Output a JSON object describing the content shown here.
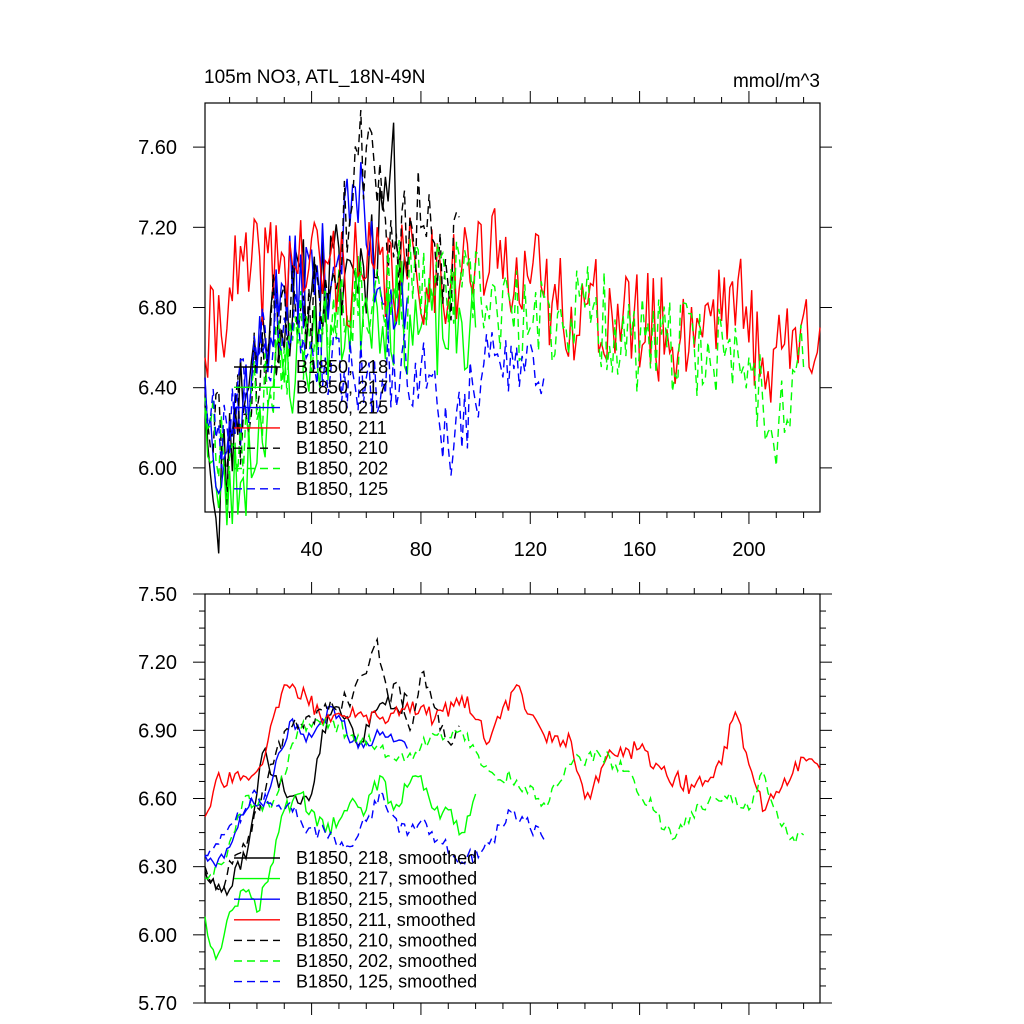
{
  "chart_data": [
    {
      "type": "line",
      "title": "105m NO3, ATL_18N-49N",
      "units": "mmol/m^3",
      "xlim": [
        1,
        226
      ],
      "ylim": [
        5.78,
        7.82
      ],
      "yticks": [
        "6.00",
        "6.40",
        "6.80",
        "7.20",
        "7.60"
      ],
      "xticks": [
        "40",
        "80",
        "120",
        "160",
        "200"
      ],
      "legend_position": "lower-left",
      "series": [
        {
          "name": "B1850, 218",
          "color": "#000000",
          "dash": "solid",
          "n": 75,
          "base": 6.62,
          "amp": 0.3,
          "seed": 11,
          "anchors": [
            [
              1,
              6.45
            ],
            [
              5,
              5.75
            ],
            [
              12,
              6.3
            ],
            [
              25,
              6.78
            ],
            [
              40,
              6.88
            ],
            [
              55,
              7.0
            ],
            [
              61,
              7.05
            ],
            [
              69,
              7.52
            ],
            [
              75,
              6.95
            ]
          ]
        },
        {
          "name": "B1850, 217",
          "color": "#00ff00",
          "dash": "solid",
          "n": 100,
          "base": 6.55,
          "amp": 0.28,
          "seed": 23,
          "anchors": [
            [
              1,
              6.3
            ],
            [
              6,
              5.8
            ],
            [
              15,
              5.95
            ],
            [
              25,
              6.4
            ],
            [
              40,
              6.6
            ],
            [
              60,
              6.85
            ],
            [
              80,
              6.7
            ],
            [
              100,
              6.7
            ]
          ]
        },
        {
          "name": "B1850, 215",
          "color": "#0000ff",
          "dash": "solid",
          "n": 75,
          "base": 6.65,
          "amp": 0.25,
          "seed": 37,
          "anchors": [
            [
              1,
              6.45
            ],
            [
              4,
              6.05
            ],
            [
              15,
              6.35
            ],
            [
              30,
              6.9
            ],
            [
              48,
              7.0
            ],
            [
              56,
              7.4
            ],
            [
              65,
              6.9
            ],
            [
              75,
              6.85
            ]
          ]
        },
        {
          "name": "B1850, 211",
          "color": "#ff0000",
          "dash": "solid",
          "n": 226,
          "base": 6.78,
          "amp": 0.28,
          "seed": 41,
          "anchors": [
            [
              1,
              6.55
            ],
            [
              10,
              6.9
            ],
            [
              30,
              7.05
            ],
            [
              60,
              6.95
            ],
            [
              95,
              7.0
            ],
            [
              115,
              7.05
            ],
            [
              125,
              6.85
            ],
            [
              150,
              6.75
            ],
            [
              175,
              6.65
            ],
            [
              193,
              6.9
            ],
            [
              205,
              6.55
            ],
            [
              226,
              6.7
            ]
          ]
        },
        {
          "name": "B1850, 210",
          "color": "#000000",
          "dash": "dashed",
          "n": 94,
          "base": 6.8,
          "amp": 0.3,
          "seed": 53,
          "anchors": [
            [
              1,
              6.4
            ],
            [
              10,
              6.15
            ],
            [
              25,
              6.7
            ],
            [
              45,
              6.95
            ],
            [
              61,
              7.7
            ],
            [
              70,
              7.05
            ],
            [
              80,
              7.2
            ],
            [
              90,
              6.9
            ],
            [
              94,
              7.25
            ]
          ]
        },
        {
          "name": "B1850, 202",
          "color": "#00ff00",
          "dash": "dashed",
          "n": 220,
          "base": 6.62,
          "amp": 0.25,
          "seed": 67,
          "anchors": [
            [
              1,
              6.35
            ],
            [
              10,
              6.05
            ],
            [
              30,
              6.6
            ],
            [
              50,
              6.85
            ],
            [
              70,
              6.9
            ],
            [
              95,
              6.9
            ],
            [
              120,
              6.7
            ],
            [
              140,
              6.8
            ],
            [
              160,
              6.6
            ],
            [
              180,
              6.6
            ],
            [
              200,
              6.55
            ],
            [
              208,
              6.2
            ],
            [
              220,
              6.5
            ]
          ]
        },
        {
          "name": "B1850, 125",
          "color": "#0000ff",
          "dash": "dashed",
          "n": 125,
          "base": 6.5,
          "amp": 0.22,
          "seed": 79,
          "anchors": [
            [
              1,
              6.4
            ],
            [
              5,
              6.15
            ],
            [
              20,
              6.55
            ],
            [
              30,
              6.75
            ],
            [
              45,
              6.55
            ],
            [
              60,
              6.45
            ],
            [
              80,
              6.5
            ],
            [
              92,
              6.1
            ],
            [
              105,
              6.55
            ],
            [
              115,
              6.6
            ],
            [
              125,
              6.45
            ]
          ]
        }
      ]
    },
    {
      "type": "line",
      "xlim": [
        1,
        226
      ],
      "ylim": [
        5.7,
        7.5
      ],
      "yticks": [
        "5.70",
        "6.00",
        "6.30",
        "6.60",
        "6.90",
        "7.20",
        "7.50"
      ],
      "legend_position": "lower-left",
      "series": [
        {
          "name": "B1850, 218, smoothed",
          "color": "#000000",
          "dash": "solid",
          "n": 75,
          "seed": 111,
          "amp": 0.04,
          "anchors": [
            [
              1,
              6.28
            ],
            [
              5,
              6.2
            ],
            [
              10,
              6.2
            ],
            [
              17,
              6.4
            ],
            [
              22,
              6.8
            ],
            [
              27,
              6.7
            ],
            [
              35,
              6.58
            ],
            [
              40,
              6.62
            ],
            [
              44,
              6.9
            ],
            [
              48,
              7.0
            ],
            [
              52,
              6.95
            ],
            [
              58,
              6.85
            ],
            [
              63,
              6.98
            ],
            [
              68,
              7.05
            ],
            [
              72,
              6.98
            ],
            [
              75,
              7.05
            ]
          ]
        },
        {
          "name": "B1850, 217, smoothed",
          "color": "#00ff00",
          "dash": "solid",
          "n": 100,
          "seed": 123,
          "amp": 0.04,
          "anchors": [
            [
              1,
              6.08
            ],
            [
              3,
              5.95
            ],
            [
              6,
              5.92
            ],
            [
              10,
              6.1
            ],
            [
              15,
              6.2
            ],
            [
              20,
              6.1
            ],
            [
              25,
              6.3
            ],
            [
              30,
              6.55
            ],
            [
              35,
              6.62
            ],
            [
              40,
              6.55
            ],
            [
              45,
              6.45
            ],
            [
              50,
              6.5
            ],
            [
              55,
              6.6
            ],
            [
              60,
              6.55
            ],
            [
              65,
              6.7
            ],
            [
              70,
              6.55
            ],
            [
              75,
              6.65
            ],
            [
              80,
              6.7
            ],
            [
              85,
              6.55
            ],
            [
              90,
              6.55
            ],
            [
              95,
              6.45
            ],
            [
              100,
              6.62
            ]
          ]
        },
        {
          "name": "B1850, 215, smoothed",
          "color": "#0000ff",
          "dash": "solid",
          "n": 75,
          "seed": 137,
          "amp": 0.03,
          "anchors": [
            [
              1,
              6.35
            ],
            [
              5,
              6.3
            ],
            [
              12,
              6.45
            ],
            [
              18,
              6.6
            ],
            [
              22,
              6.55
            ],
            [
              28,
              6.8
            ],
            [
              33,
              6.95
            ],
            [
              38,
              6.85
            ],
            [
              44,
              6.95
            ],
            [
              48,
              7.0
            ],
            [
              55,
              6.85
            ],
            [
              60,
              6.85
            ],
            [
              65,
              6.88
            ],
            [
              70,
              6.85
            ],
            [
              75,
              6.82
            ]
          ]
        },
        {
          "name": "B1850, 211, smoothed",
          "color": "#ff0000",
          "dash": "solid",
          "n": 226,
          "seed": 141,
          "amp": 0.04,
          "anchors": [
            [
              1,
              6.52
            ],
            [
              5,
              6.68
            ],
            [
              15,
              6.7
            ],
            [
              22,
              6.75
            ],
            [
              30,
              7.1
            ],
            [
              38,
              7.05
            ],
            [
              45,
              6.95
            ],
            [
              55,
              7.0
            ],
            [
              65,
              6.95
            ],
            [
              75,
              7.02
            ],
            [
              85,
              6.95
            ],
            [
              95,
              7.05
            ],
            [
              105,
              6.85
            ],
            [
              115,
              7.1
            ],
            [
              125,
              6.88
            ],
            [
              135,
              6.85
            ],
            [
              140,
              6.6
            ],
            [
              150,
              6.8
            ],
            [
              160,
              6.82
            ],
            [
              170,
              6.7
            ],
            [
              180,
              6.65
            ],
            [
              190,
              6.75
            ],
            [
              195,
              6.98
            ],
            [
              200,
              6.75
            ],
            [
              206,
              6.55
            ],
            [
              212,
              6.65
            ],
            [
              220,
              6.78
            ],
            [
              226,
              6.73
            ]
          ]
        },
        {
          "name": "B1850, 210, smoothed",
          "color": "#000000",
          "dash": "dashed",
          "n": 94,
          "seed": 153,
          "amp": 0.04,
          "anchors": [
            [
              1,
              6.3
            ],
            [
              6,
              6.2
            ],
            [
              12,
              6.35
            ],
            [
              18,
              6.45
            ],
            [
              25,
              6.75
            ],
            [
              32,
              6.9
            ],
            [
              40,
              6.95
            ],
            [
              48,
              7.0
            ],
            [
              55,
              7.05
            ],
            [
              60,
              7.15
            ],
            [
              64,
              7.3
            ],
            [
              68,
              7.05
            ],
            [
              72,
              7.1
            ],
            [
              76,
              6.9
            ],
            [
              80,
              7.15
            ],
            [
              85,
              7.0
            ],
            [
              90,
              6.85
            ],
            [
              94,
              6.92
            ]
          ]
        },
        {
          "name": "B1850, 202, smoothed",
          "color": "#00ff00",
          "dash": "dashed",
          "n": 220,
          "seed": 167,
          "amp": 0.035,
          "anchors": [
            [
              1,
              6.25
            ],
            [
              8,
              6.32
            ],
            [
              15,
              6.6
            ],
            [
              25,
              6.55
            ],
            [
              35,
              6.9
            ],
            [
              45,
              6.95
            ],
            [
              55,
              6.88
            ],
            [
              65,
              6.82
            ],
            [
              75,
              6.78
            ],
            [
              85,
              6.88
            ],
            [
              95,
              6.9
            ],
            [
              105,
              6.72
            ],
            [
              115,
              6.68
            ],
            [
              125,
              6.58
            ],
            [
              135,
              6.75
            ],
            [
              145,
              6.8
            ],
            [
              155,
              6.72
            ],
            [
              165,
              6.55
            ],
            [
              172,
              6.42
            ],
            [
              182,
              6.58
            ],
            [
              192,
              6.6
            ],
            [
              200,
              6.55
            ],
            [
              205,
              6.72
            ],
            [
              210,
              6.55
            ],
            [
              215,
              6.42
            ],
            [
              220,
              6.44
            ]
          ]
        },
        {
          "name": "B1850, 125, smoothed",
          "color": "#0000ff",
          "dash": "dashed",
          "n": 125,
          "seed": 179,
          "amp": 0.035,
          "anchors": [
            [
              1,
              6.35
            ],
            [
              5,
              6.4
            ],
            [
              12,
              6.5
            ],
            [
              20,
              6.62
            ],
            [
              25,
              6.58
            ],
            [
              32,
              6.58
            ],
            [
              38,
              6.45
            ],
            [
              45,
              6.45
            ],
            [
              52,
              6.38
            ],
            [
              60,
              6.5
            ],
            [
              66,
              6.62
            ],
            [
              72,
              6.45
            ],
            [
              80,
              6.5
            ],
            [
              88,
              6.4
            ],
            [
              95,
              6.32
            ],
            [
              105,
              6.4
            ],
            [
              112,
              6.55
            ],
            [
              118,
              6.5
            ],
            [
              125,
              6.42
            ]
          ]
        }
      ]
    }
  ]
}
